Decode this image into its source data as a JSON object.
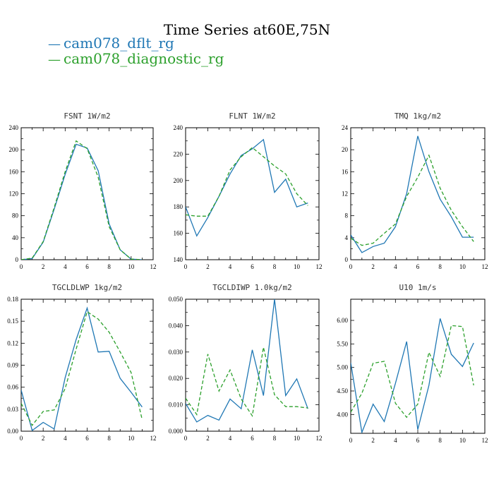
{
  "figure": {
    "title": "Time Series at60E,75N",
    "legend": [
      {
        "label": "cam078_dflt_rg",
        "color": "#1f77b4",
        "symbol": "—"
      },
      {
        "label": "cam078_diagnostic_rg",
        "color": "#2ca02c",
        "symbol": "—"
      }
    ]
  },
  "chart_data": [
    {
      "type": "line",
      "title": "FSNT   1W/m2",
      "xlim": [
        0,
        12
      ],
      "xticks": [
        0,
        2,
        4,
        6,
        8,
        10,
        12
      ],
      "ylim": [
        0,
        240
      ],
      "yticks": [
        0,
        40,
        80,
        120,
        160,
        200,
        240
      ],
      "ytick_labels": [
        "0",
        "40",
        "80",
        "120",
        "160",
        "200",
        "240"
      ],
      "x": [
        0,
        1,
        2,
        3,
        4,
        5,
        6,
        7,
        8,
        9,
        10,
        11
      ],
      "series": [
        {
          "name": "cam078_dflt_rg",
          "color": "#1f77b4",
          "dash": "",
          "values": [
            0,
            2,
            32,
            92,
            155,
            210,
            203,
            162,
            65,
            18,
            1,
            0
          ]
        },
        {
          "name": "cam078_diagnostic_rg",
          "color": "#2ca02c",
          "dash": "5,3",
          "values": [
            0,
            3,
            33,
            95,
            160,
            216,
            202,
            150,
            60,
            18,
            1,
            0
          ]
        }
      ]
    },
    {
      "type": "line",
      "title": "FLNT   1W/m2",
      "xlim": [
        0,
        12
      ],
      "xticks": [
        0,
        2,
        4,
        6,
        8,
        10,
        12
      ],
      "ylim": [
        140,
        240
      ],
      "yticks": [
        140,
        160,
        180,
        200,
        220,
        240
      ],
      "ytick_labels": [
        "140",
        "160",
        "180",
        "200",
        "220",
        "240"
      ],
      "x": [
        0,
        1,
        2,
        3,
        4,
        5,
        6,
        7,
        8,
        9,
        10,
        11
      ],
      "series": [
        {
          "name": "cam078_dflt_rg",
          "color": "#1f77b4",
          "dash": "",
          "values": [
            180,
            158,
            172,
            188,
            205,
            219,
            224,
            231,
            191,
            201,
            180,
            183
          ]
        },
        {
          "name": "cam078_diagnostic_rg",
          "color": "#2ca02c",
          "dash": "5,3",
          "values": [
            174,
            173,
            173,
            188,
            208,
            218,
            225,
            218,
            211,
            205,
            190,
            181
          ]
        }
      ]
    },
    {
      "type": "line",
      "title": "TMQ   1kg/m2",
      "xlim": [
        0,
        12
      ],
      "xticks": [
        0,
        2,
        4,
        6,
        8,
        10,
        12
      ],
      "ylim": [
        0,
        24
      ],
      "yticks": [
        0,
        4,
        8,
        12,
        16,
        20,
        24
      ],
      "ytick_labels": [
        "0",
        "4",
        "8",
        "12",
        "16",
        "20",
        "24"
      ],
      "x": [
        0,
        1,
        2,
        3,
        4,
        5,
        6,
        7,
        8,
        9,
        10,
        11
      ],
      "series": [
        {
          "name": "cam078_dflt_rg",
          "color": "#1f77b4",
          "dash": "",
          "values": [
            4.5,
            1.3,
            2.4,
            3.0,
            6.0,
            12.0,
            22.5,
            16.0,
            11.0,
            7.8,
            4.1,
            4.1
          ]
        },
        {
          "name": "cam078_diagnostic_rg",
          "color": "#2ca02c",
          "dash": "5,3",
          "values": [
            3.9,
            2.6,
            3.0,
            4.8,
            6.5,
            11.5,
            15.0,
            19.0,
            13.0,
            9.0,
            6.0,
            3.3
          ]
        }
      ]
    },
    {
      "type": "line",
      "title": "TGCLDLWP   1kg/m2",
      "xlim": [
        0,
        12
      ],
      "xticks": [
        0,
        2,
        4,
        6,
        8,
        10,
        12
      ],
      "ylim": [
        0,
        0.18
      ],
      "yticks": [
        0,
        0.03,
        0.06,
        0.09,
        0.12,
        0.15,
        0.18
      ],
      "ytick_labels": [
        "0.00",
        "0.03",
        "0.06",
        "0.09",
        "0.12",
        "0.15",
        "0.18"
      ],
      "x": [
        0,
        1,
        2,
        3,
        4,
        5,
        6,
        7,
        8,
        9,
        10,
        11
      ],
      "series": [
        {
          "name": "cam078_dflt_rg",
          "color": "#1f77b4",
          "dash": "",
          "values": [
            0.056,
            0.001,
            0.012,
            0.003,
            0.073,
            0.125,
            0.168,
            0.108,
            0.109,
            0.072,
            0.053,
            0.033
          ]
        },
        {
          "name": "cam078_diagnostic_rg",
          "color": "#2ca02c",
          "dash": "5,3",
          "values": [
            0.038,
            0.008,
            0.027,
            0.029,
            0.058,
            0.112,
            0.163,
            0.153,
            0.135,
            0.108,
            0.08,
            0.016
          ]
        }
      ]
    },
    {
      "type": "line",
      "title": "TGCLDIWP   1.0kg/m2",
      "xlim": [
        0,
        12
      ],
      "xticks": [
        0,
        2,
        4,
        6,
        8,
        10,
        12
      ],
      "ylim": [
        0,
        0.05
      ],
      "yticks": [
        0,
        0.01,
        0.02,
        0.03,
        0.04,
        0.05
      ],
      "ytick_labels": [
        "0.000",
        "0.010",
        "0.020",
        "0.030",
        "0.040",
        "0.050"
      ],
      "x": [
        0,
        1,
        2,
        3,
        4,
        5,
        6,
        7,
        8,
        9,
        10,
        11
      ],
      "series": [
        {
          "name": "cam078_dflt_rg",
          "color": "#1f77b4",
          "dash": "",
          "values": [
            0.0105,
            0.0035,
            0.006,
            0.0042,
            0.0122,
            0.0085,
            0.0308,
            0.0135,
            0.05,
            0.0135,
            0.0198,
            0.0085
          ]
        },
        {
          "name": "cam078_diagnostic_rg",
          "color": "#2ca02c",
          "dash": "5,3",
          "values": [
            0.0125,
            0.0063,
            0.0292,
            0.0152,
            0.0232,
            0.0122,
            0.0058,
            0.0318,
            0.0138,
            0.0093,
            0.0093,
            0.0088
          ]
        }
      ]
    },
    {
      "type": "line",
      "title": "U10   1m/s",
      "xlim": [
        0,
        12
      ],
      "xticks": [
        0,
        2,
        4,
        6,
        8,
        10,
        12
      ],
      "ylim": [
        3.6,
        6.45
      ],
      "yticks": [
        4.0,
        4.5,
        5.0,
        5.5,
        6.0
      ],
      "ytick_labels": [
        "4.00",
        "4.50",
        "5.00",
        "5.50",
        "6.00"
      ],
      "x": [
        0,
        1,
        2,
        3,
        4,
        5,
        6,
        7,
        8,
        9,
        10,
        11
      ],
      "series": [
        {
          "name": "cam078_dflt_rg",
          "color": "#1f77b4",
          "dash": "",
          "values": [
            5.1,
            3.62,
            4.22,
            3.85,
            4.66,
            5.55,
            3.68,
            4.62,
            6.04,
            5.28,
            5.02,
            5.52
          ]
        },
        {
          "name": "cam078_diagnostic_rg",
          "color": "#2ca02c",
          "dash": "5,3",
          "values": [
            4.05,
            4.45,
            5.09,
            5.13,
            4.24,
            3.94,
            4.22,
            5.32,
            4.81,
            5.89,
            5.87,
            4.62
          ]
        }
      ]
    }
  ]
}
